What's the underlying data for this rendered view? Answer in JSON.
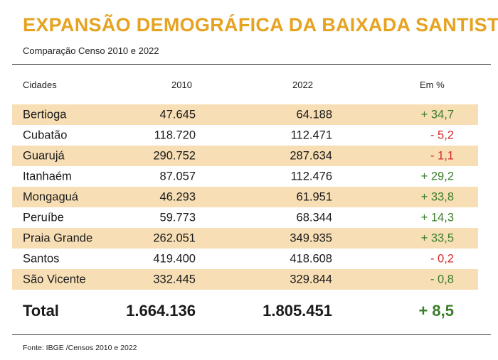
{
  "header": {
    "title": "EXPANSÃO DEMOGRÁFICA DA BAIXADA SANTISTA",
    "subtitle": "Comparação Censo 2010 e 2022"
  },
  "table": {
    "columns": [
      "Cidades",
      "2010",
      "2022",
      "Em %"
    ],
    "rows": [
      {
        "city": "Bertioga",
        "v2010": "47.645",
        "v2022": "64.188",
        "pct": "+ 34,7",
        "trend": "up"
      },
      {
        "city": "Cubatão",
        "v2010": "118.720",
        "v2022": "112.471",
        "pct": "-  5,2",
        "trend": "down"
      },
      {
        "city": "Guarujá",
        "v2010": "290.752",
        "v2022": "287.634",
        "pct": "- 1,1",
        "trend": "down"
      },
      {
        "city": "Itanhaém",
        "v2010": "87.057",
        "v2022": "112.476",
        "pct": "+ 29,2",
        "trend": "up"
      },
      {
        "city": "Mongaguá",
        "v2010": "46.293",
        "v2022": "61.951",
        "pct": "+ 33,8",
        "trend": "up"
      },
      {
        "city": "Peruíbe",
        "v2010": "59.773",
        "v2022": "68.344",
        "pct": "+ 14,3",
        "trend": "up"
      },
      {
        "city": "Praia Grande",
        "v2010": "262.051",
        "v2022": "349.935",
        "pct": "+ 33,5",
        "trend": "up"
      },
      {
        "city": "Santos",
        "v2010": "419.400",
        "v2022": "418.608",
        "pct": "- 0,2",
        "trend": "down"
      },
      {
        "city": "São Vicente",
        "v2010": "332.445",
        "v2022": "329.844",
        "pct": "- 0,8",
        "trend": "down-green"
      }
    ],
    "total": {
      "label": "Total",
      "v2010": "1.664.136",
      "v2022": "1.805.451",
      "pct": "+ 8,5"
    }
  },
  "footer": {
    "source": "Fonte: IBGE /Censos 2010 e 2022"
  },
  "colors": {
    "title": "#e6a321",
    "row_shade": "#f7deb5",
    "positive": "#3a7d2a",
    "negative": "#d62a2a"
  }
}
